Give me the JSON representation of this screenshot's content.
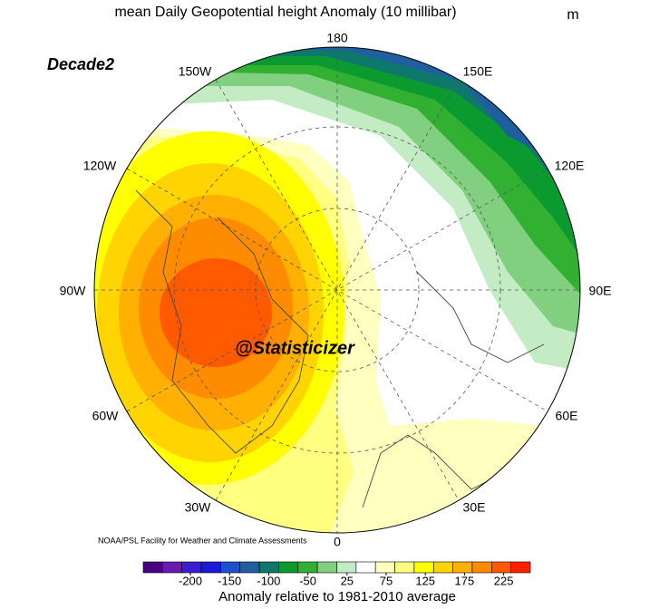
{
  "title": "mean Daily Geopotential height Anomaly (10 millibar)",
  "unit": "m",
  "panel_label": "Decade2",
  "longitude_labels": [
    "180",
    "150W",
    "150E",
    "120W",
    "120E",
    "90W",
    "90E",
    "60W",
    "60E",
    "30W",
    "30E",
    "0"
  ],
  "watermark": "@Statisticizer",
  "credit": "NOAA/PSL Facility for Weather and Climate Assessments",
  "colorbar": {
    "title": "Anomaly relative to 1981-2010 average",
    "ticks": [
      -200,
      -150,
      -100,
      -50,
      25,
      75,
      125,
      175,
      225
    ],
    "colors": [
      "#4b0082",
      "#6a1ab0",
      "#3c1ed2",
      "#1a1ad6",
      "#1e4fd0",
      "#1f5fa0",
      "#0f786c",
      "#0a9a30",
      "#32b032",
      "#80d080",
      "#c4ecc4",
      "#ffffff",
      "#ffffc0",
      "#ffff80",
      "#ffff00",
      "#ffd400",
      "#ffb000",
      "#ff8c00",
      "#ff5a00",
      "#ff2000"
    ]
  }
}
